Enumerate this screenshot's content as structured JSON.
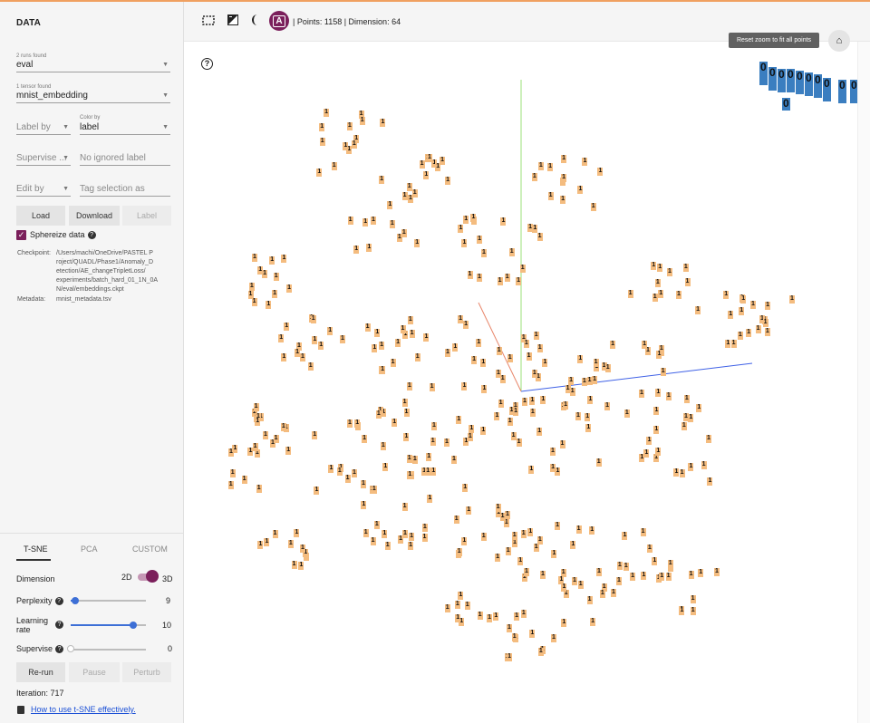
{
  "left": {
    "title": "DATA",
    "runs_hint": "2 runs found",
    "run_value": "eval",
    "tensor_hint": "1 tensor found",
    "tensor_value": "mnist_embedding",
    "label_by": "Label by",
    "color_by_hint": "Color by",
    "color_by_value": "label",
    "supervise": "Supervise ...",
    "ignored_label": "No ignored label",
    "edit_by": "Edit by",
    "tag_selection": "Tag selection as",
    "load": "Load",
    "download": "Download",
    "label_btn": "Label",
    "sphereize": "Sphereize data",
    "checkpoint_key": "Checkpoint:",
    "checkpoint_lines": [
      "/Users/machi/OneDrive/PASTEL P",
      "roject/QUADL/Phase1/Anomaly_D",
      "etection/AE_changeTripletLoss/",
      "experiments/batch_hard_01_1N_0A",
      "N/eval/embeddings.ckpt"
    ],
    "metadata_key": "Metadata:",
    "metadata_value": "mnist_metadata.tsv"
  },
  "tabs": [
    "T-SNE",
    "PCA",
    "CUSTOM"
  ],
  "tsne": {
    "dimension_label": "Dimension",
    "dim_2d": "2D",
    "dim_3d": "3D",
    "perplexity_label": "Perplexity",
    "perplexity_value": "9",
    "perplexity_fraction": 0.06,
    "learning_rate_label": "Learning rate",
    "learning_rate_value": "10",
    "learning_rate_fraction": 0.83,
    "supervise_label": "Supervise",
    "supervise_value": "0",
    "supervise_fraction": 0.0,
    "rerun": "Re-run",
    "pause": "Pause",
    "perturb": "Perturb",
    "iteration": "Iteration: 717",
    "help_link": "How to use t-SNE effectively."
  },
  "toolbar": {
    "a_label": "A",
    "points_text": "| Points: 1158 | Dimension: 64"
  },
  "canvas": {
    "tooltip": "Reset zoom to fit all points",
    "point_label_1": "1",
    "point_label_0": "0",
    "colors": {
      "ones": "#f4bc7f",
      "zeros": "#3b7ec0",
      "accent": "#7b1f5b",
      "slider": "#3d6fd6"
    }
  }
}
